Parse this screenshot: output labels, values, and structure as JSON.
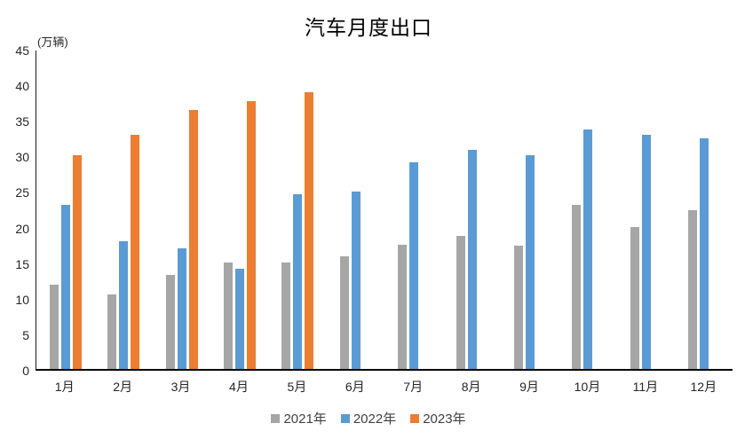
{
  "chart_data": {
    "type": "bar",
    "title": "汽车月度出口",
    "ylabel": "(万辆)",
    "xlabel": "",
    "categories": [
      "1月",
      "2月",
      "3月",
      "4月",
      "5月",
      "6月",
      "7月",
      "8月",
      "9月",
      "10月",
      "11月",
      "12月"
    ],
    "series": [
      {
        "key": "2021",
        "name": "2021年",
        "color": "#A6A6A6",
        "values": [
          11.9,
          10.5,
          13.2,
          15.0,
          15.0,
          15.8,
          17.4,
          18.7,
          17.3,
          23.1,
          20.0,
          22.3
        ]
      },
      {
        "key": "2022",
        "name": "2022年",
        "color": "#5B9BD5",
        "values": [
          23.1,
          18.0,
          17.0,
          14.1,
          24.5,
          24.9,
          29.0,
          30.8,
          30.1,
          33.7,
          32.9,
          32.4
        ]
      },
      {
        "key": "2023",
        "name": "2023年",
        "color": "#ED7D31",
        "values": [
          30.1,
          32.9,
          36.4,
          37.6,
          38.9,
          null,
          null,
          null,
          null,
          null,
          null,
          null
        ]
      }
    ],
    "ylim": [
      0,
      45
    ],
    "ytick_step": 5,
    "grid": false,
    "legend_position": "bottom",
    "axis_color": "#000000",
    "text_color": "#262626"
  }
}
